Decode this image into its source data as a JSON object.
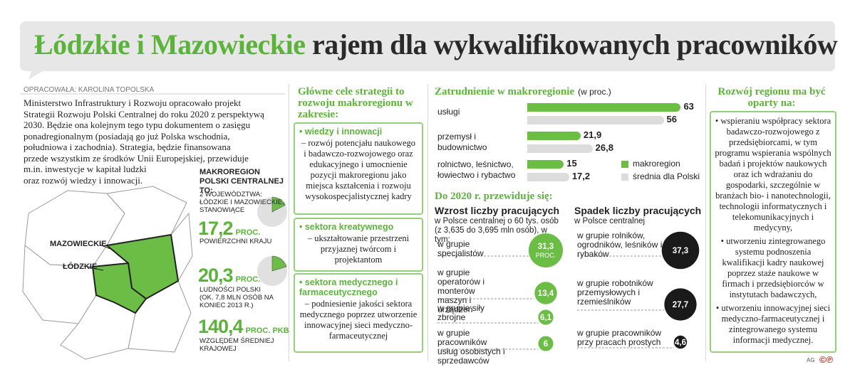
{
  "header": {
    "title_highlight": "Łódzkie i Mazowieckie",
    "title_rest": "rajem dla wykwalifikowanych pracowników"
  },
  "author": "OPRACOWAŁA: KAROLINA TOPOLSKA",
  "intro": [
    "Ministerstwo Infrastruktury i Rozwoju opracowało projekt",
    "Strategii Rozwoju Polski Centralnej do roku 2020 z perspektywą",
    "2030. Będzie ona kolejnym tego typu dokumentem o zasięgu",
    "ponadregionalnym (posiadają go już Polska wschodnia,",
    "południowa i zachodnia). Strategia, będzie finansowana",
    "przede wszystkim ze środków Unii Europejskiej, przewiduje",
    "m.in. inwestycje w kapitał ludzki",
    "oraz rozwój wiedzy i innowacji."
  ],
  "map": {
    "labels": [
      "MAZOWIECKIE",
      "ŁÓDZKIE"
    ]
  },
  "macroregion": {
    "heading": "MAKROREGION POLSKI CENTRALNEJ TO:",
    "intro": "2 WOJEWÓDZTWA: ŁÓDZKIE I MAZOWIECKIE, STANOWIĄCE",
    "stats": [
      {
        "value": 17.2,
        "value_label": "17,2",
        "unit": "PROC.",
        "caption": "POWIERZCHNI KRAJU"
      },
      {
        "value": 20.3,
        "value_label": "20,3",
        "unit": "PROC.",
        "caption": "LUDNOŚCI POLSKI (OK. 7,8 MLN OSÓB NA KONIEC 2013 R.)"
      },
      {
        "value": 140.4,
        "value_label": "140,4",
        "unit": "PROC. PKB",
        "caption": "WZGLĘDEM ŚREDNIEJ KRAJOWEJ"
      }
    ]
  },
  "goals": {
    "heading": "Główne cele strategii to rozwoju makroregionu w zakresie:",
    "items": [
      {
        "title": "wiedzy i innowacji",
        "text": "– rozwój potencjału naukowego i badawczo-rozwojowego oraz edukacyjnego i umocnienie pozycji makroregionu jako miejsca kształcenia i rozwoju wysokospecjalistycznej kadry"
      },
      {
        "title": "sektora kreatywnego",
        "text": "– ukształtowanie przestrzeni przyjaznej twórcom i projektantom"
      },
      {
        "title": "sektora medycznego i farmaceutycznego",
        "text": "– podniesienie jakości sektora medycznego poprzez utworzenie innowacyjnej sieci medyczno-farmaceutycznej"
      }
    ]
  },
  "chart_data": {
    "type": "bar",
    "title": "Zatrudnienie w makroregionie",
    "subtitle": "(w proc.)",
    "categories": [
      "usługi",
      "przemysł i budownictwo",
      "rolnictwo, leśnictwo, łowiectwo i rybactwo"
    ],
    "series": [
      {
        "name": "makroregion",
        "color": "#6cbd45",
        "values": [
          63,
          21.9,
          15
        ],
        "value_labels": [
          "63",
          "21,9",
          "15"
        ]
      },
      {
        "name": "średnia dla Polski",
        "color": "#dcdcdc",
        "values": [
          56,
          26.8,
          17.2
        ],
        "value_labels": [
          "56",
          "26,8",
          "17,2"
        ]
      }
    ]
  },
  "forecast": {
    "heading": "Do 2020 r. przewiduje się:",
    "growth": {
      "title": "Wzrost liczby pracujących",
      "subtitle": "w Polsce centralnej o 60 tys. osób (z 3,635 do 3,695 mln osób), w tym:",
      "color": "#6cbd45",
      "items": [
        {
          "label": "w grupie specjalistów",
          "value": 31.3,
          "value_label": "31,3",
          "unit": "PROC."
        },
        {
          "label": "w grupie operatorów i monterów maszyn i urządzeń",
          "value": 13.4,
          "value_label": "13,4"
        },
        {
          "label": "w grupie siły zbrojne",
          "value": 6.1,
          "value_label": "6,1"
        },
        {
          "label": "w grupie pracowników usług osobistych i sprzedawców",
          "value": 6,
          "value_label": "6"
        }
      ]
    },
    "decline": {
      "title": "Spadek liczby pracujących",
      "subtitle": "w Polsce centralnej",
      "color": "#1a1a1a",
      "items": [
        {
          "label": "w grupie rolników, ogrodników, leśników i rybaków",
          "value": 37.3,
          "value_label": "37,3"
        },
        {
          "label": "w grupie robotników przemysłowych i rzemieślników",
          "value": 27.7,
          "value_label": "27,7"
        },
        {
          "label": "w grupie pracowników przy pracach prostych",
          "value": 4.6,
          "value_label": "4,6"
        }
      ]
    }
  },
  "development": {
    "heading": "Rozwój regionu ma być oparty na:",
    "items": [
      "wspieraniu współpracy sektora badawczo-rozwojowego z przedsiębiorcami, w tym programu wspierania wspólnych badań i projektów naukowych oraz ich wdrażaniu do gospodarki, szczególnie w branżach bio- i nanotechnologii, technologii informatycznych i telekomunikacyjnych i medycyny,",
      "utworzeniu zintegrowanego systemu podnoszenia kwalifikacji kadry naukowej poprzez staże naukowe w firmach i przedsiębiorców w instytutach badawczych,",
      "utworzeniu innowacyjnej sieci medyczno-farmaceutycznej i zintegrowanego systemu informacji medycznej."
    ]
  },
  "footer": {
    "credit": "AG",
    "mark": "©℗"
  }
}
